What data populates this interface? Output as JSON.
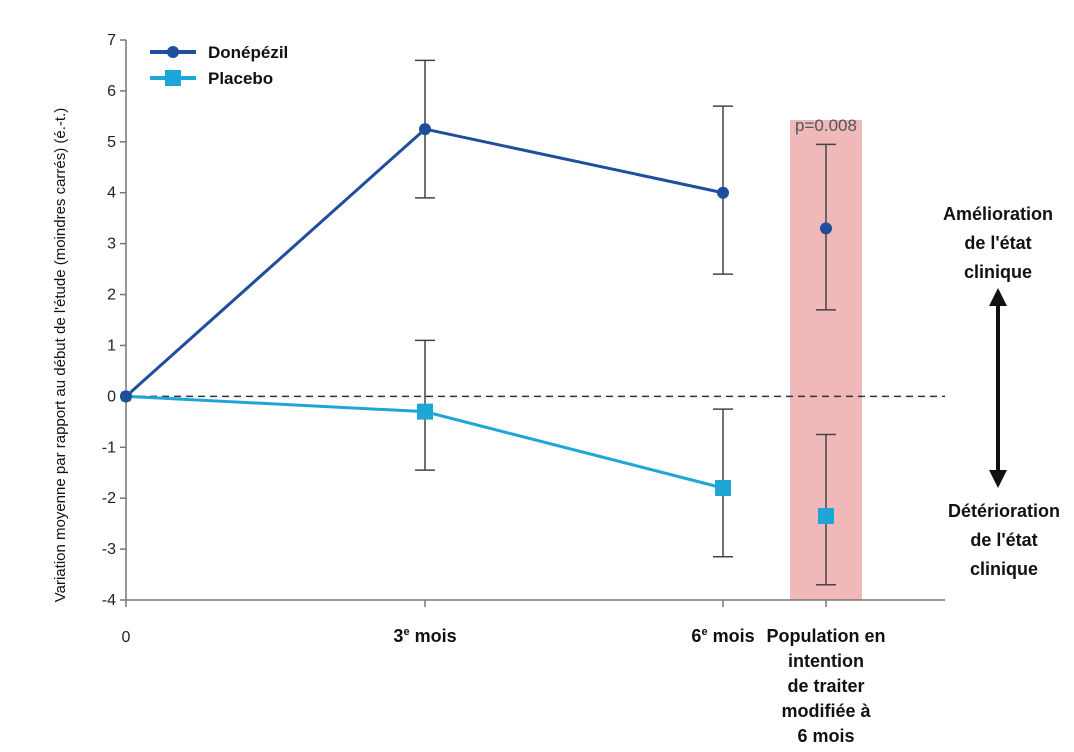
{
  "chart_data": {
    "type": "line",
    "ylabel": "Variation moyenne par rapport au début de l'étude (moindres carrés) (é.-t.)",
    "ylim": [
      -4,
      7
    ],
    "yticks": [
      "-4",
      "-3",
      "-2",
      "-1",
      "0",
      "1",
      "2",
      "3",
      "4",
      "5",
      "6",
      "7"
    ],
    "categories": [
      [
        "0"
      ],
      [
        "3e mois"
      ],
      [
        "6e mois"
      ],
      [
        "Population en",
        "intention",
        "de traiter",
        "modifiée à",
        "6 mois"
      ]
    ],
    "series": [
      {
        "name": "Donépézil",
        "color": "#1f4e9c",
        "marker": "circle",
        "values": [
          0,
          5.25,
          4.0,
          3.3
        ],
        "err_low": [
          null,
          3.9,
          2.4,
          1.7
        ],
        "err_high": [
          null,
          6.6,
          5.7,
          4.95
        ],
        "connected": [
          true,
          true,
          true,
          false
        ]
      },
      {
        "name": "Placebo",
        "color": "#1ea7d6",
        "marker": "square",
        "values": [
          0,
          -0.3,
          -1.8,
          -2.35
        ],
        "err_low": [
          null,
          -1.45,
          -3.15,
          -3.7
        ],
        "err_high": [
          null,
          1.1,
          -0.25,
          -0.75
        ],
        "connected": [
          true,
          true,
          true,
          false
        ]
      }
    ],
    "reference_line": 0,
    "highlight_category": 3,
    "highlight_color": "#f0b8b8",
    "annotation": "p=0.008",
    "right_labels": {
      "improve": [
        "Amélioration",
        "de l'état",
        "clinique"
      ],
      "worsen": [
        "Détérioration",
        "de l'état",
        "clinique"
      ]
    },
    "legend_position": "top-left"
  }
}
